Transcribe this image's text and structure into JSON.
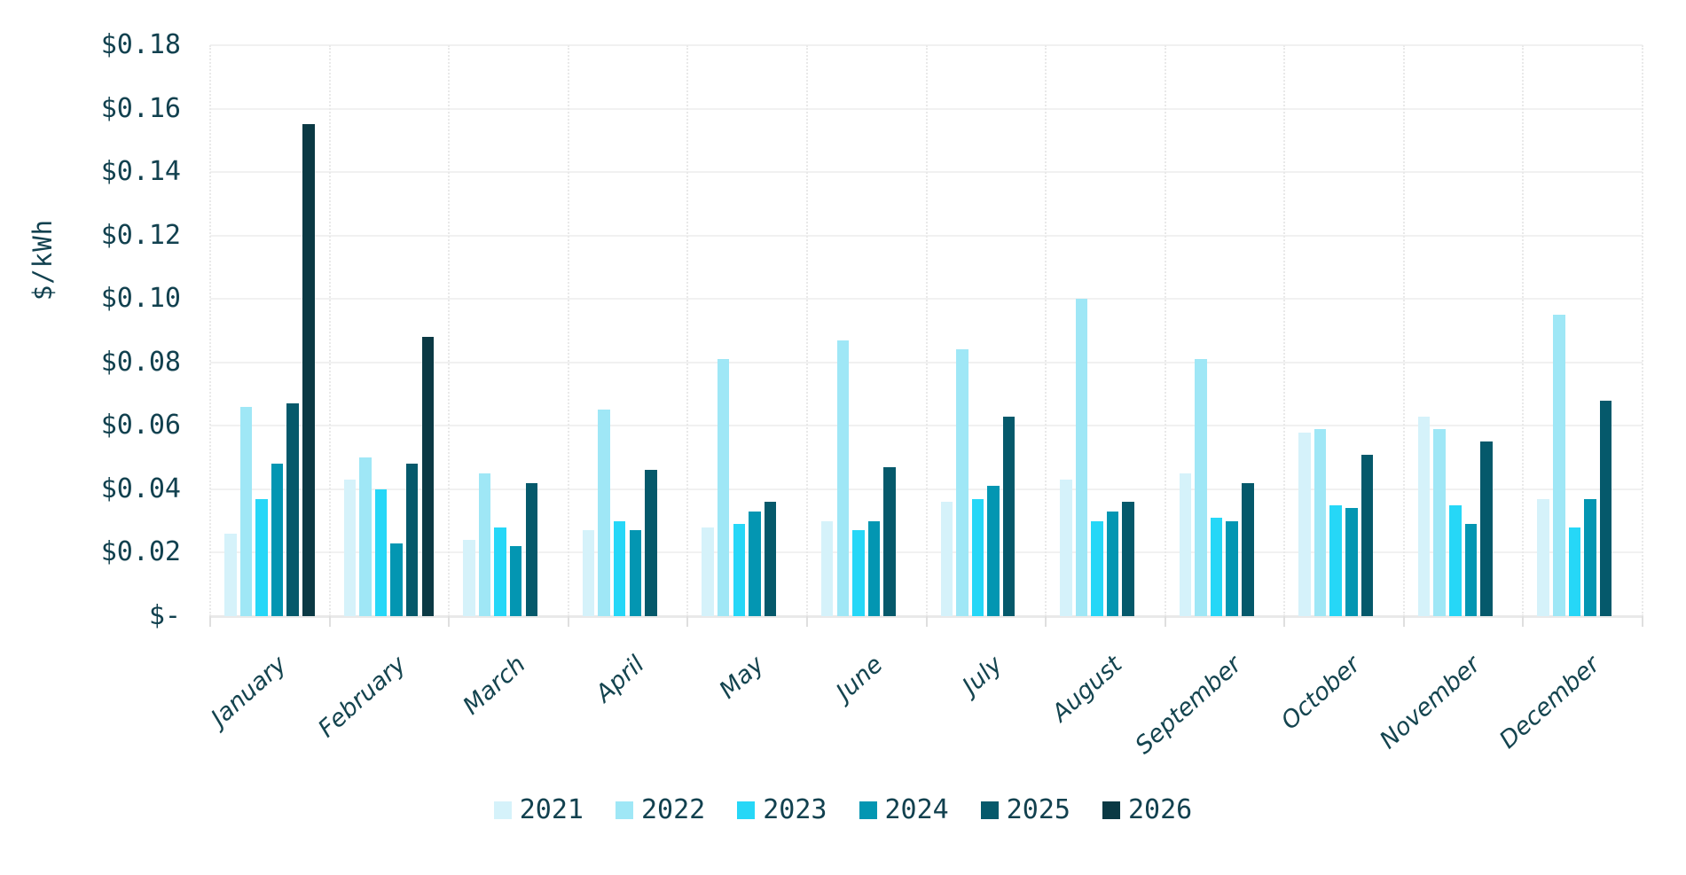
{
  "chart_data": {
    "type": "bar",
    "title": "",
    "xlabel": "",
    "ylabel": "$/kWh",
    "ylim": [
      0,
      0.18
    ],
    "grid": "horizontal solid gridlines every 0.02; vertical dotted separators between month groups",
    "legend_position": "bottom",
    "categories": [
      "January",
      "February",
      "March",
      "April",
      "May",
      "June",
      "July",
      "August",
      "September",
      "October",
      "November",
      "December"
    ],
    "series": [
      {
        "name": "2021",
        "color": "#d5f2fa",
        "values": [
          0.026,
          0.043,
          0.024,
          0.027,
          0.028,
          0.03,
          0.036,
          0.043,
          0.045,
          0.058,
          0.063,
          0.037
        ]
      },
      {
        "name": "2022",
        "color": "#9fe7f6",
        "values": [
          0.066,
          0.05,
          0.045,
          0.065,
          0.081,
          0.087,
          0.084,
          0.1,
          0.081,
          0.059,
          0.059,
          0.095
        ]
      },
      {
        "name": "2023",
        "color": "#26d7f7",
        "values": [
          0.037,
          0.04,
          0.028,
          0.03,
          0.029,
          0.027,
          0.037,
          0.03,
          0.031,
          0.035,
          0.035,
          0.028
        ]
      },
      {
        "name": "2024",
        "color": "#0396b2",
        "values": [
          0.048,
          0.023,
          0.022,
          0.027,
          0.033,
          0.03,
          0.041,
          0.033,
          0.03,
          0.034,
          0.029,
          0.037
        ]
      },
      {
        "name": "2025",
        "color": "#05596b",
        "values": [
          0.067,
          0.048,
          0.042,
          0.046,
          0.036,
          0.047,
          0.063,
          0.036,
          0.042,
          0.051,
          0.055,
          0.068
        ]
      },
      {
        "name": "2026",
        "color": "#0b3944",
        "values": [
          0.155,
          0.088,
          null,
          null,
          null,
          null,
          null,
          null,
          null,
          null,
          null,
          null
        ]
      }
    ],
    "y_ticks": [
      {
        "value": 0.18,
        "label": "$0.18"
      },
      {
        "value": 0.16,
        "label": "$0.16"
      },
      {
        "value": 0.14,
        "label": "$0.14"
      },
      {
        "value": 0.12,
        "label": "$0.12"
      },
      {
        "value": 0.1,
        "label": "$0.10"
      },
      {
        "value": 0.08,
        "label": "$0.08"
      },
      {
        "value": 0.06,
        "label": "$0.06"
      },
      {
        "value": 0.04,
        "label": "$0.04"
      },
      {
        "value": 0.02,
        "label": "$0.02"
      },
      {
        "value": 0.0,
        "label": "$-"
      }
    ]
  },
  "colors": {
    "background": "#ffffff",
    "text": "#12414f",
    "gridline": "#f1f1f1",
    "separator": "#e9e9e9",
    "axis_line": "#e9e9e9"
  }
}
